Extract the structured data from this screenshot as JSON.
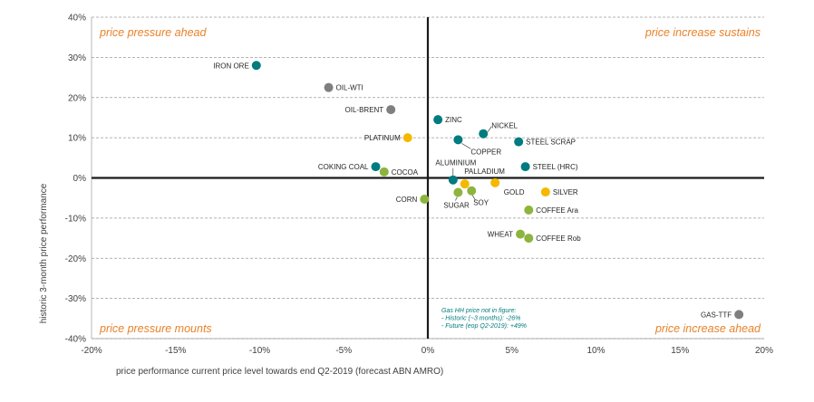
{
  "chart_data": {
    "type": "scatter",
    "title": "",
    "xlabel": "price performance current price level towards end Q2-2019 (forecast ABN AMRO)",
    "ylabel": "historic 3-month price performance",
    "xlim": [
      -20,
      20
    ],
    "ylim": [
      -40,
      40
    ],
    "x_ticks": [
      -20,
      -15,
      -10,
      -5,
      0,
      5,
      10,
      15,
      20
    ],
    "y_ticks": [
      -40,
      -30,
      -20,
      -10,
      0,
      10,
      20,
      30,
      40
    ],
    "x_tick_labels": [
      "-20%",
      "-15%",
      "-10%",
      "-5%",
      "0%",
      "5%",
      "10%",
      "15%",
      "20%"
    ],
    "y_tick_labels": [
      "-40%",
      "-30%",
      "-20%",
      "-10%",
      "0%",
      "10%",
      "20%",
      "30%",
      "40%"
    ],
    "grid": "horizontal dashed",
    "colors": {
      "teal": "#007b7f",
      "grey": "#7f7f7f",
      "yellow": "#f5b800",
      "green": "#8db43e",
      "quadrant_text": "#e8822a",
      "note_text": "#007b7f"
    },
    "quadrants": {
      "top_left": "price pressure ahead",
      "top_right": "price increase sustains",
      "bottom_left": "price pressure mounts",
      "bottom_right": "price increase ahead"
    },
    "note": [
      "Gas HH price not in figure:",
      "- Historic (~3 months):  -26%",
      "- Future (eop Q2-2019):  +49%"
    ],
    "points": [
      {
        "label": "IRON ORE",
        "x": -10.2,
        "y": 28,
        "color": "teal",
        "anchor": "left"
      },
      {
        "label": "OIL-WTI",
        "x": -5.9,
        "y": 22.5,
        "color": "grey",
        "anchor": "right"
      },
      {
        "label": "OIL-BRENT",
        "x": -2.2,
        "y": 17,
        "color": "grey",
        "anchor": "left"
      },
      {
        "label": "PLATINUM",
        "x": -1.2,
        "y": 10,
        "color": "yellow",
        "anchor": "left"
      },
      {
        "label": "ZINC",
        "x": 0.6,
        "y": 14.5,
        "color": "teal",
        "anchor": "right"
      },
      {
        "label": "NICKEL",
        "x": 3.3,
        "y": 11,
        "color": "teal",
        "anchor": "right-up"
      },
      {
        "label": "COPPER",
        "x": 1.8,
        "y": 9.5,
        "color": "teal",
        "anchor": "below-right"
      },
      {
        "label": "STEEL SCRAP",
        "x": 5.4,
        "y": 9,
        "color": "teal",
        "anchor": "right"
      },
      {
        "label": "COKING COAL",
        "x": -3.1,
        "y": 2.8,
        "color": "teal",
        "anchor": "left"
      },
      {
        "label": "COCOA",
        "x": -2.6,
        "y": 1.5,
        "color": "green",
        "anchor": "right"
      },
      {
        "label": "ALUMINIUM",
        "x": 1.5,
        "y": -0.5,
        "color": "teal",
        "anchor": "above"
      },
      {
        "label": "PALLADIUM",
        "x": 4.0,
        "y": -1.2,
        "color": "yellow",
        "anchor": "above-left"
      },
      {
        "label": "STEEL (HRC)",
        "x": 5.8,
        "y": 2.8,
        "color": "teal",
        "anchor": "right"
      },
      {
        "label": "GOLD",
        "x": 2.2,
        "y": -1.5,
        "color": "yellow",
        "anchor": "leader-gold"
      },
      {
        "label": "SOY",
        "x": 2.6,
        "y": -3.2,
        "color": "green",
        "anchor": "below-right"
      },
      {
        "label": "SUGAR",
        "x": 1.8,
        "y": -3.6,
        "color": "green",
        "anchor": "below"
      },
      {
        "label": "SILVER",
        "x": 7.0,
        "y": -3.5,
        "color": "yellow",
        "anchor": "right"
      },
      {
        "label": "CORN",
        "x": -0.2,
        "y": -5.3,
        "color": "green",
        "anchor": "left"
      },
      {
        "label": "COFFEE Ara",
        "x": 6.0,
        "y": -8,
        "color": "green",
        "anchor": "right"
      },
      {
        "label": "WHEAT",
        "x": 5.5,
        "y": -14,
        "color": "green",
        "anchor": "left"
      },
      {
        "label": "COFFEE Rob",
        "x": 6.0,
        "y": -15,
        "color": "green",
        "anchor": "right"
      },
      {
        "label": "GAS-TTF",
        "x": 18.5,
        "y": -34,
        "color": "grey",
        "anchor": "left"
      }
    ]
  }
}
